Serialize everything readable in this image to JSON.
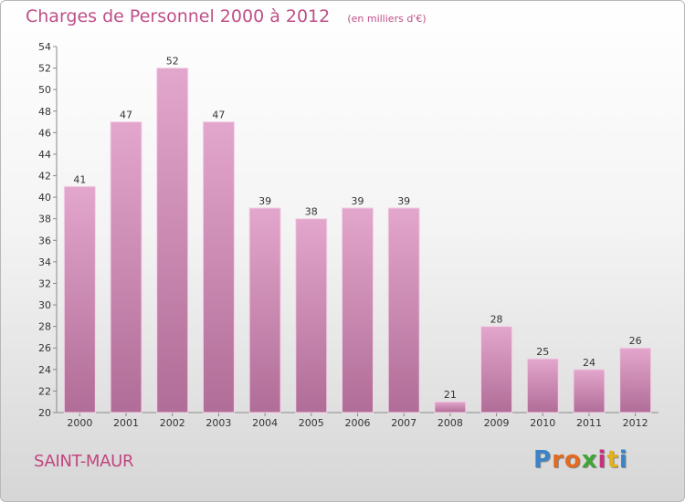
{
  "header": {
    "title": "Charges de Personnel 2000 à 2012",
    "unit": "(en milliers d'€)"
  },
  "footer": {
    "location": "SAINT-MAUR",
    "logo_letters": [
      "P",
      "r",
      "o",
      "x",
      "i",
      "t",
      "i"
    ]
  },
  "colors": {
    "title": "#bf4f88",
    "bar_light": "#e3a6cc",
    "bar_dark": "#b06d97",
    "logo": [
      "#3a84c7",
      "#e36a1f",
      "#e36a1f",
      "#3fa535",
      "#c7317b",
      "#e3b01f",
      "#3a84c7"
    ]
  },
  "chart_data": {
    "type": "bar",
    "title": "Charges de Personnel 2000 à 2012",
    "subtitle": "(en milliers d'€)",
    "categories": [
      "2000",
      "2001",
      "2002",
      "2003",
      "2004",
      "2005",
      "2006",
      "2007",
      "2008",
      "2009",
      "2010",
      "2011",
      "2012"
    ],
    "values": [
      41,
      47,
      52,
      47,
      39,
      38,
      39,
      39,
      21,
      28,
      25,
      24,
      26
    ],
    "ylim": [
      20,
      54
    ],
    "yticks": [
      20,
      22,
      24,
      26,
      28,
      30,
      32,
      34,
      36,
      38,
      40,
      42,
      44,
      46,
      48,
      50,
      52,
      54
    ],
    "grid": false,
    "legend": "none"
  }
}
